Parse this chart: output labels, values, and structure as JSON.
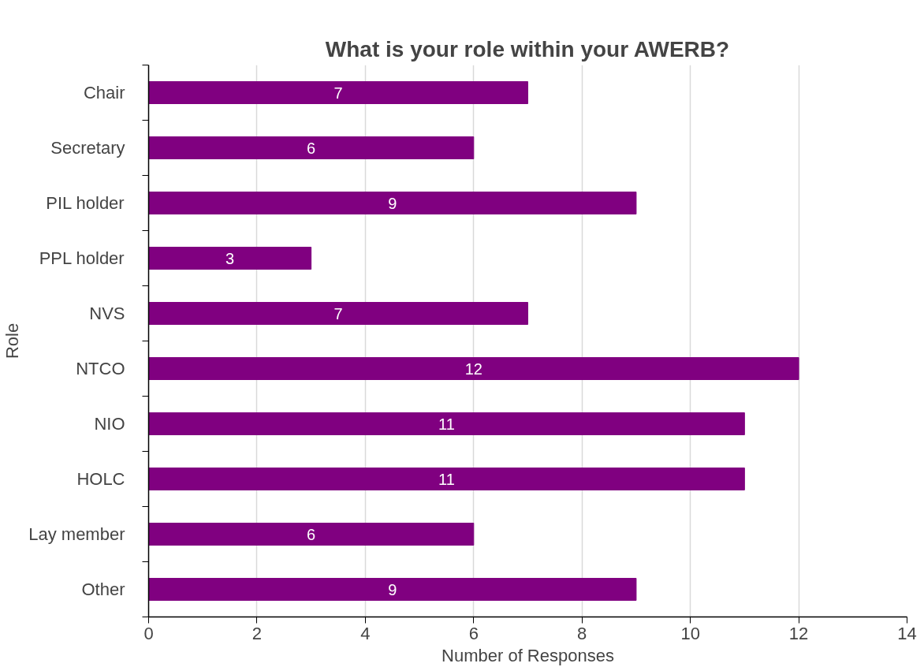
{
  "chart_data": {
    "type": "bar",
    "orientation": "horizontal",
    "title": "What is your role within your AWERB?",
    "xlabel": "Number of Responses",
    "ylabel": "Role",
    "categories": [
      "Chair",
      "Secretary",
      "PIL holder",
      "PPL holder",
      "NVS",
      "NTCO",
      "NIO",
      "HOLC",
      "Lay member",
      "Other"
    ],
    "values": [
      7,
      6,
      9,
      3,
      7,
      12,
      11,
      11,
      6,
      9
    ],
    "color": "#800080",
    "xlim": [
      0,
      14
    ],
    "xticks": [
      0,
      2,
      4,
      6,
      8,
      10,
      12,
      14
    ],
    "grid": "x",
    "data_labels": true
  }
}
